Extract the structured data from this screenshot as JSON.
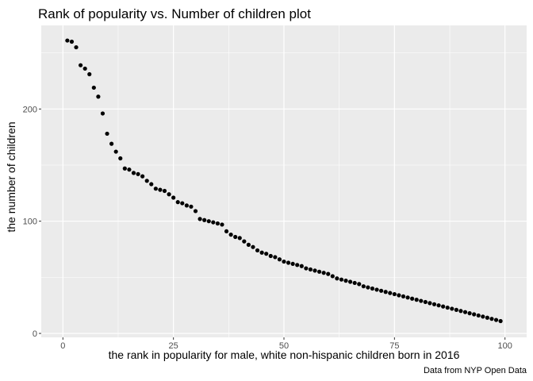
{
  "chart_data": {
    "type": "scatter",
    "title": "Rank of popularity vs. Number of children plot",
    "xlabel": "the rank in popularity for male, white non-hispanic children born in 2016",
    "ylabel": "the number of children",
    "caption": "Data from NYP Open Data",
    "xlim": [
      -4.9,
      104.9
    ],
    "ylim": [
      -3.5,
      274.5
    ],
    "x_ticks": [
      0,
      25,
      50,
      75,
      100
    ],
    "y_ticks": [
      0,
      100,
      200
    ],
    "grid": true,
    "legend": "none",
    "point_color": "#000000",
    "panel_background": "#ebebeb",
    "grid_color": "#ffffff",
    "x": [
      1,
      2,
      3,
      4,
      5,
      6,
      7,
      8,
      9,
      10,
      11,
      12,
      13,
      14,
      15,
      16,
      17,
      18,
      19,
      20,
      21,
      22,
      23,
      24,
      25,
      26,
      27,
      28,
      29,
      30,
      31,
      32,
      33,
      34,
      35,
      36,
      37,
      38,
      39,
      40,
      41,
      42,
      43,
      44,
      45,
      46,
      47,
      48,
      49,
      50,
      51,
      52,
      53,
      54,
      55,
      56,
      57,
      58,
      59,
      60,
      61,
      62,
      63,
      64,
      65,
      66,
      67,
      68,
      69,
      70,
      71,
      72,
      73,
      74,
      75,
      76,
      77,
      78,
      79,
      80,
      81,
      82,
      83,
      84,
      85,
      86,
      87,
      88,
      89,
      90,
      91,
      92,
      93,
      94,
      95,
      96,
      97,
      98,
      99
    ],
    "y": [
      261,
      260,
      255,
      239,
      236,
      231,
      219,
      211,
      196,
      178,
      169,
      162,
      156,
      147,
      146,
      143,
      142,
      140,
      136,
      133,
      129,
      128,
      127,
      124,
      121,
      117,
      116,
      114,
      113,
      109,
      102,
      101,
      100,
      99,
      98,
      97,
      91,
      88,
      86,
      85,
      82,
      79,
      77,
      74,
      72,
      71,
      69,
      68,
      66,
      64,
      63,
      62,
      61,
      60,
      58,
      57,
      56,
      55,
      54,
      53,
      51,
      49,
      48,
      47,
      46,
      45,
      44,
      42,
      41,
      40,
      39,
      38,
      37,
      36,
      35,
      34,
      33,
      32,
      31,
      30,
      29,
      28,
      27,
      26,
      25,
      24,
      23,
      22,
      21,
      20,
      19,
      18,
      17,
      16,
      15,
      14,
      13,
      12,
      11
    ]
  }
}
